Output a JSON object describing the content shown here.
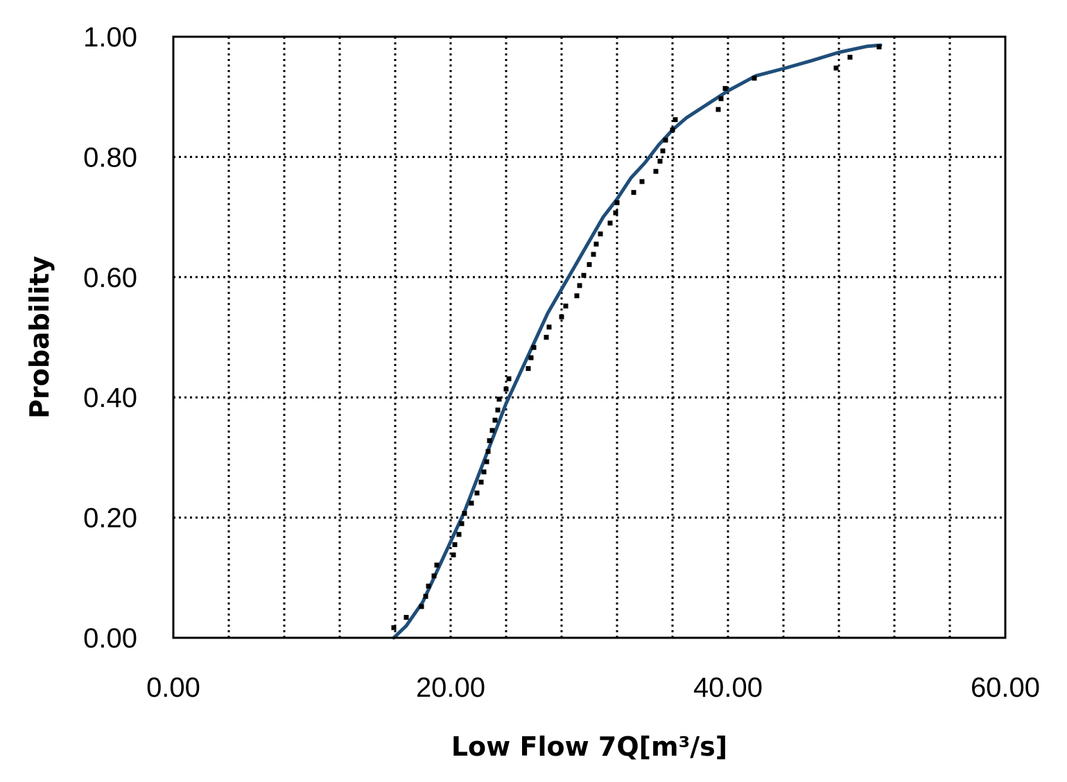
{
  "chart_data": {
    "type": "scatter",
    "title": "",
    "xlabel": "Low Flow 7Q[m³/s]",
    "ylabel": "Probability",
    "xlim": [
      0,
      60
    ],
    "ylim": [
      0,
      1
    ],
    "x_ticks": [
      0,
      20,
      40,
      60
    ],
    "x_tick_labels": [
      "0.00",
      "20.00",
      "40.00",
      "60.00"
    ],
    "x_minor_grid_step": 4,
    "y_ticks": [
      0,
      0.2,
      0.4,
      0.6,
      0.8,
      1.0
    ],
    "y_tick_labels": [
      "0.00",
      "0.20",
      "0.40",
      "0.60",
      "0.80",
      "1.00"
    ],
    "grid": "dotted",
    "legend": "none",
    "colors": {
      "fitted_curve": "#1f4e79",
      "observed_points": "#000000"
    },
    "series": [
      {
        "kind": "points",
        "points": [
          [
            15.9,
            0.017
          ],
          [
            16.8,
            0.034
          ],
          [
            17.9,
            0.052
          ],
          [
            18.2,
            0.069
          ],
          [
            18.4,
            0.086
          ],
          [
            18.8,
            0.103
          ],
          [
            19.0,
            0.121
          ],
          [
            20.2,
            0.138
          ],
          [
            20.3,
            0.155
          ],
          [
            20.6,
            0.172
          ],
          [
            20.8,
            0.19
          ],
          [
            21.0,
            0.207
          ],
          [
            21.5,
            0.224
          ],
          [
            21.9,
            0.241
          ],
          [
            22.2,
            0.259
          ],
          [
            22.4,
            0.276
          ],
          [
            22.6,
            0.293
          ],
          [
            22.7,
            0.31
          ],
          [
            22.8,
            0.328
          ],
          [
            23.0,
            0.345
          ],
          [
            23.2,
            0.362
          ],
          [
            23.4,
            0.379
          ],
          [
            23.5,
            0.397
          ],
          [
            24.0,
            0.414
          ],
          [
            24.2,
            0.431
          ],
          [
            25.6,
            0.448
          ],
          [
            25.8,
            0.466
          ],
          [
            26.0,
            0.483
          ],
          [
            26.9,
            0.5
          ],
          [
            27.1,
            0.517
          ],
          [
            28.0,
            0.534
          ],
          [
            28.3,
            0.552
          ],
          [
            29.1,
            0.569
          ],
          [
            29.3,
            0.586
          ],
          [
            29.6,
            0.603
          ],
          [
            30.0,
            0.621
          ],
          [
            30.3,
            0.638
          ],
          [
            30.5,
            0.655
          ],
          [
            30.8,
            0.672
          ],
          [
            31.5,
            0.69
          ],
          [
            31.9,
            0.707
          ],
          [
            32.0,
            0.724
          ],
          [
            33.2,
            0.741
          ],
          [
            33.8,
            0.759
          ],
          [
            34.8,
            0.776
          ],
          [
            35.1,
            0.793
          ],
          [
            35.3,
            0.81
          ],
          [
            35.5,
            0.828
          ],
          [
            36.0,
            0.845
          ],
          [
            36.2,
            0.862
          ],
          [
            39.3,
            0.879
          ],
          [
            39.5,
            0.897
          ],
          [
            39.8,
            0.914
          ],
          [
            41.9,
            0.931
          ],
          [
            47.8,
            0.948
          ],
          [
            48.8,
            0.966
          ],
          [
            50.9,
            0.983
          ]
        ]
      },
      {
        "kind": "line",
        "points": [
          [
            15.9,
            0.0
          ],
          [
            16.8,
            0.02
          ],
          [
            18.0,
            0.06
          ],
          [
            19.0,
            0.11
          ],
          [
            20.0,
            0.16
          ],
          [
            21.0,
            0.21
          ],
          [
            22.0,
            0.27
          ],
          [
            23.0,
            0.33
          ],
          [
            24.0,
            0.39
          ],
          [
            25.0,
            0.44
          ],
          [
            26.0,
            0.49
          ],
          [
            27.0,
            0.54
          ],
          [
            28.0,
            0.58
          ],
          [
            29.0,
            0.62
          ],
          [
            30.0,
            0.66
          ],
          [
            31.0,
            0.7
          ],
          [
            32.0,
            0.73
          ],
          [
            33.0,
            0.765
          ],
          [
            34.0,
            0.79
          ],
          [
            35.0,
            0.82
          ],
          [
            36.0,
            0.845
          ],
          [
            37.0,
            0.865
          ],
          [
            38.0,
            0.88
          ],
          [
            40.0,
            0.91
          ],
          [
            42.0,
            0.935
          ],
          [
            44.0,
            0.947
          ],
          [
            46.0,
            0.96
          ],
          [
            48.0,
            0.974
          ],
          [
            50.0,
            0.984
          ],
          [
            51.0,
            0.986
          ]
        ]
      }
    ]
  }
}
